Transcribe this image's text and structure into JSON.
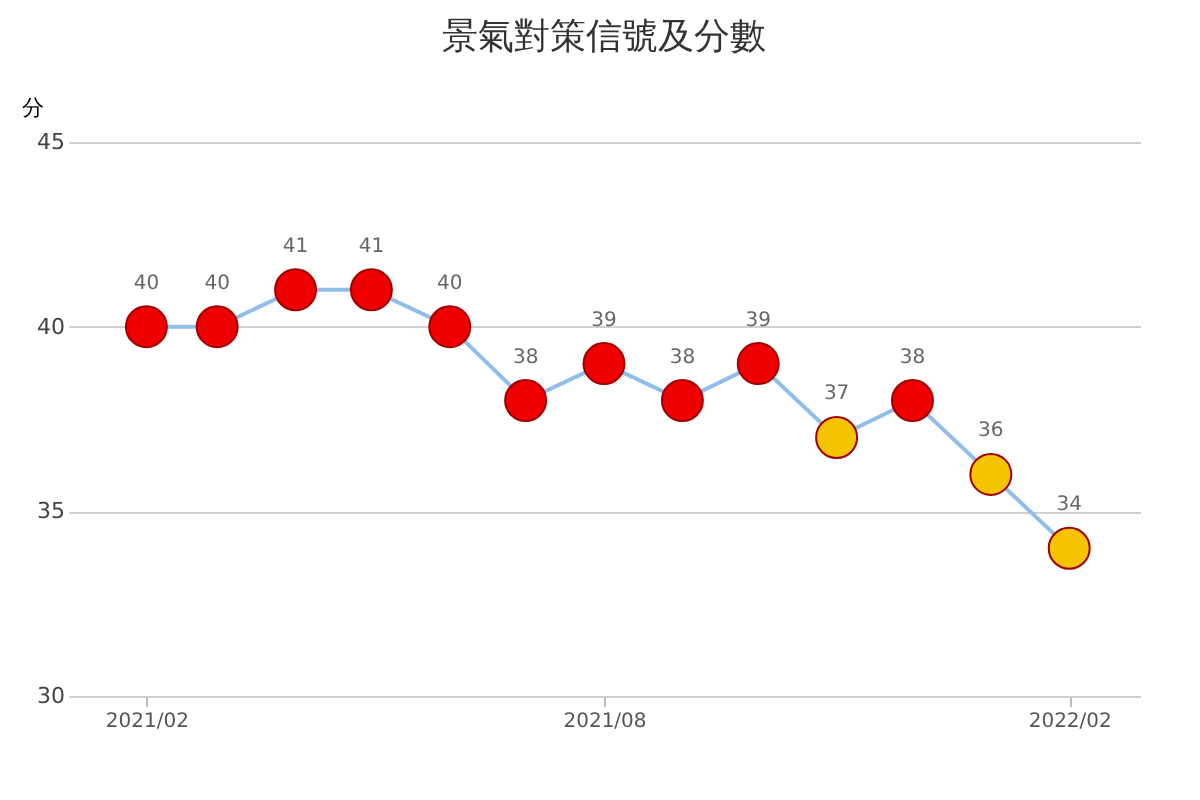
{
  "chart_data": {
    "type": "line",
    "title": "景氣對策信號及分數",
    "ylabel": "分",
    "x": [
      "2021-02",
      "2021-03",
      "2021-04",
      "2021-05",
      "2021-06",
      "2021-07",
      "2021-08",
      "2021-09",
      "2021-10",
      "2021-11",
      "2021-12",
      "2022-01",
      "2022-02"
    ],
    "series": [
      {
        "color": "#8fbfe8",
        "values": [
          40,
          40,
          41,
          41,
          40,
          38,
          39,
          38,
          39,
          37,
          38,
          36,
          34
        ],
        "colors": [
          "#ee0000",
          "#ee0000",
          "#ee0000",
          "#ee0000",
          "#ee0000",
          "#ee0000",
          "#ee0000",
          "#ee0000",
          "#ee0000",
          "#f5c400",
          "#ee0000",
          "#f5c400",
          "#f5c400"
        ]
      }
    ],
    "xlim": [
      "2021-01",
      "2022-03"
    ],
    "xticks": [
      {
        "value": "2021-02",
        "label": "2021/02"
      },
      {
        "value": "2021-08",
        "label": "2021/08"
      },
      {
        "value": "2022-02",
        "label": "2022/02"
      }
    ],
    "ylim": [
      30,
      45
    ],
    "yticks": [
      30,
      35,
      40,
      45
    ],
    "grid": "y",
    "marker": "circle",
    "line_style": "solid",
    "data_labels": true
  }
}
